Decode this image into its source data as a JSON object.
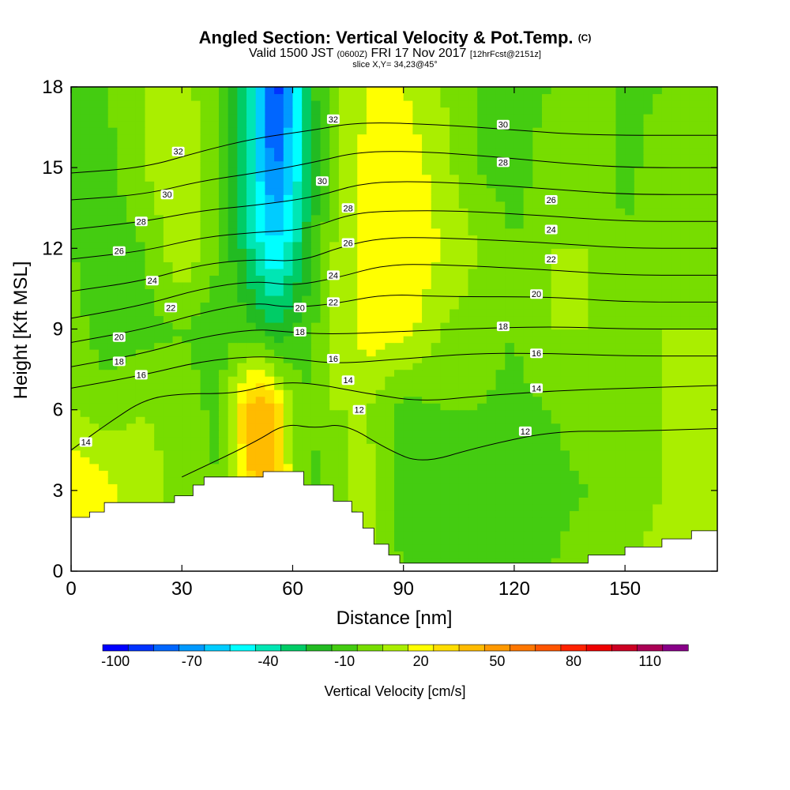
{
  "header": {
    "title": "Angled Section: Vertical Velocity & Pot.Temp.",
    "title_suffix": "(C)",
    "valid_prefix": "Valid 1500 JST",
    "valid_zulu": "(0600Z)",
    "valid_date": "FRI 17 Nov 2017",
    "valid_fcst": "[12hrFcst@2151z]",
    "slice": "slice X,Y= 34,23@45°"
  },
  "chart_data": {
    "type": "heatmap",
    "title": "Angled Section: Vertical Velocity & Pot.Temp. (C)",
    "xlabel": "Distance [nm]",
    "ylabel": "Height [Kft MSL]",
    "xlim": [
      0,
      175
    ],
    "ylim": [
      0,
      18
    ],
    "x_ticks": [
      0,
      30,
      60,
      90,
      120,
      150
    ],
    "y_ticks": [
      0,
      3,
      6,
      9,
      12,
      15,
      18
    ],
    "grid": false,
    "colorbar": {
      "title": "Vertical Velocity [cm/s]",
      "tick_labels": [
        "-100",
        "-70",
        "-40",
        "-10",
        "20",
        "50",
        "80",
        "110"
      ],
      "tick_values": [
        -100,
        -70,
        -40,
        -10,
        20,
        50,
        80,
        110
      ],
      "min": -105,
      "max": 125,
      "step": 10,
      "colors": [
        "#0000ff",
        "#0033ff",
        "#0066ff",
        "#0099ff",
        "#00ccff",
        "#00ffff",
        "#00e6b4",
        "#00cc66",
        "#22bb22",
        "#44cc11",
        "#77dd00",
        "#aaee00",
        "#ffff00",
        "#ffdd00",
        "#ffbb00",
        "#ff9900",
        "#ff7700",
        "#ff5500",
        "#ff2200",
        "#ee0000",
        "#cc0022",
        "#aa0055",
        "#880088"
      ]
    },
    "velocity_field": {
      "x": [
        0,
        10,
        20,
        30,
        40,
        45,
        50,
        55,
        60,
        65,
        70,
        75,
        80,
        90,
        100,
        110,
        120,
        130,
        140,
        150,
        160,
        175
      ],
      "y": [
        0,
        3,
        6,
        9,
        12,
        15,
        18
      ],
      "values": [
        [
          12,
          10,
          5,
          -5,
          -8,
          5,
          10,
          5,
          -5,
          -10,
          -5,
          0,
          5,
          -5,
          -8,
          -5,
          -8,
          -5,
          0,
          5,
          8,
          10
        ],
        [
          25,
          18,
          10,
          2,
          -5,
          15,
          40,
          35,
          10,
          -8,
          -5,
          5,
          10,
          -12,
          -10,
          -8,
          -12,
          -8,
          -5,
          0,
          5,
          8
        ],
        [
          5,
          0,
          5,
          0,
          -8,
          22,
          45,
          35,
          5,
          -5,
          5,
          5,
          5,
          -10,
          -5,
          -5,
          -8,
          -5,
          0,
          5,
          5,
          5
        ],
        [
          0,
          -12,
          -8,
          -5,
          -10,
          -8,
          -15,
          -25,
          -15,
          -8,
          5,
          12,
          20,
          20,
          5,
          0,
          -5,
          5,
          5,
          0,
          5,
          5
        ],
        [
          -5,
          -12,
          -5,
          15,
          -5,
          -20,
          -40,
          -55,
          -40,
          -15,
          5,
          10,
          20,
          25,
          15,
          5,
          -5,
          5,
          5,
          -5,
          5,
          0
        ],
        [
          -5,
          -8,
          5,
          15,
          -5,
          -25,
          -50,
          -80,
          -55,
          -25,
          -10,
          10,
          18,
          22,
          10,
          -5,
          -10,
          0,
          5,
          -8,
          0,
          -5
        ],
        [
          -5,
          -5,
          5,
          10,
          -5,
          -22,
          -45,
          -95,
          -60,
          -15,
          -10,
          10,
          15,
          15,
          5,
          -5,
          -8,
          -5,
          0,
          -8,
          -5,
          0
        ]
      ]
    },
    "terrain_kft": [
      [
        0,
        2.0
      ],
      [
        5,
        2.2
      ],
      [
        9,
        2.55
      ],
      [
        20,
        2.55
      ],
      [
        28,
        2.8
      ],
      [
        33,
        3.2
      ],
      [
        36,
        3.5
      ],
      [
        48,
        3.5
      ],
      [
        52,
        3.7
      ],
      [
        58,
        3.7
      ],
      [
        63,
        3.2
      ],
      [
        68,
        3.2
      ],
      [
        71,
        2.6
      ],
      [
        76,
        2.2
      ],
      [
        79,
        1.6
      ],
      [
        82,
        1.0
      ],
      [
        86,
        0.6
      ],
      [
        89,
        0.3
      ],
      [
        130,
        0.3
      ],
      [
        140,
        0.6
      ],
      [
        150,
        0.9
      ],
      [
        160,
        1.2
      ],
      [
        168,
        1.5
      ],
      [
        175,
        1.6
      ]
    ],
    "theta_contours": [
      {
        "label": "12",
        "pts": [
          [
            30,
            3.5
          ],
          [
            50,
            4.8
          ],
          [
            58,
            5.5
          ],
          [
            66,
            5.3
          ],
          [
            74,
            5.5
          ],
          [
            86,
            4.5
          ],
          [
            95,
            4.0
          ],
          [
            110,
            4.6
          ],
          [
            130,
            5.2
          ],
          [
            150,
            5.2
          ],
          [
            175,
            5.3
          ]
        ]
      },
      {
        "label": "14",
        "pts": [
          [
            0,
            4.5
          ],
          [
            10,
            5.5
          ],
          [
            20,
            6.4
          ],
          [
            30,
            6.6
          ],
          [
            45,
            6.6
          ],
          [
            55,
            7.0
          ],
          [
            65,
            7.0
          ],
          [
            80,
            6.6
          ],
          [
            95,
            6.3
          ],
          [
            110,
            6.5
          ],
          [
            130,
            6.7
          ],
          [
            150,
            6.8
          ],
          [
            175,
            6.9
          ]
        ]
      },
      {
        "label": "16",
        "pts": [
          [
            0,
            6.8
          ],
          [
            20,
            7.3
          ],
          [
            35,
            7.8
          ],
          [
            50,
            8.0
          ],
          [
            60,
            7.9
          ],
          [
            72,
            7.7
          ],
          [
            90,
            7.9
          ],
          [
            110,
            8.1
          ],
          [
            130,
            8.1
          ],
          [
            150,
            8.0
          ],
          [
            175,
            8.0
          ]
        ]
      },
      {
        "label": "18",
        "pts": [
          [
            0,
            7.6
          ],
          [
            20,
            8.1
          ],
          [
            35,
            8.7
          ],
          [
            50,
            9.0
          ],
          [
            58,
            8.9
          ],
          [
            70,
            8.8
          ],
          [
            88,
            8.9
          ],
          [
            105,
            9.0
          ],
          [
            130,
            9.1
          ],
          [
            150,
            9.0
          ],
          [
            175,
            9.0
          ]
        ]
      },
      {
        "label": "20",
        "pts": [
          [
            0,
            8.5
          ],
          [
            20,
            9.0
          ],
          [
            35,
            9.6
          ],
          [
            50,
            10.0
          ],
          [
            58,
            9.8
          ],
          [
            70,
            9.9
          ],
          [
            85,
            10.3
          ],
          [
            100,
            10.2
          ],
          [
            130,
            10.2
          ],
          [
            150,
            10.0
          ],
          [
            175,
            10.0
          ]
        ]
      },
      {
        "label": "22",
        "pts": [
          [
            0,
            9.4
          ],
          [
            20,
            9.9
          ],
          [
            35,
            10.5
          ],
          [
            50,
            10.8
          ],
          [
            60,
            10.6
          ],
          [
            72,
            10.9
          ],
          [
            85,
            11.4
          ],
          [
            100,
            11.4
          ],
          [
            130,
            11.2
          ],
          [
            150,
            11.0
          ],
          [
            175,
            11.0
          ]
        ]
      },
      {
        "label": "24",
        "pts": [
          [
            0,
            10.4
          ],
          [
            20,
            10.8
          ],
          [
            35,
            11.4
          ],
          [
            50,
            11.6
          ],
          [
            62,
            11.5
          ],
          [
            74,
            12.1
          ],
          [
            85,
            12.4
          ],
          [
            100,
            12.4
          ],
          [
            130,
            12.2
          ],
          [
            150,
            12.0
          ],
          [
            175,
            12.0
          ]
        ]
      },
      {
        "label": "26",
        "pts": [
          [
            0,
            11.6
          ],
          [
            20,
            11.9
          ],
          [
            35,
            12.4
          ],
          [
            50,
            12.6
          ],
          [
            64,
            12.7
          ],
          [
            76,
            13.3
          ],
          [
            88,
            13.4
          ],
          [
            105,
            13.4
          ],
          [
            130,
            13.2
          ],
          [
            150,
            13.0
          ],
          [
            175,
            13.0
          ]
        ]
      },
      {
        "label": "28",
        "pts": [
          [
            0,
            12.7
          ],
          [
            20,
            13.0
          ],
          [
            35,
            13.4
          ],
          [
            50,
            13.6
          ],
          [
            66,
            13.9
          ],
          [
            78,
            14.4
          ],
          [
            90,
            14.5
          ],
          [
            110,
            14.4
          ],
          [
            130,
            14.2
          ],
          [
            150,
            14.0
          ],
          [
            175,
            14.0
          ]
        ]
      },
      {
        "label": "30",
        "pts": [
          [
            0,
            13.8
          ],
          [
            20,
            14.0
          ],
          [
            35,
            14.5
          ],
          [
            50,
            14.8
          ],
          [
            66,
            15.2
          ],
          [
            78,
            15.6
          ],
          [
            95,
            15.6
          ],
          [
            115,
            15.4
          ],
          [
            130,
            15.2
          ],
          [
            150,
            15.0
          ],
          [
            175,
            15.0
          ]
        ]
      },
      {
        "label": "32",
        "pts": [
          [
            0,
            14.8
          ],
          [
            20,
            15.0
          ],
          [
            35,
            15.6
          ],
          [
            50,
            16.1
          ],
          [
            66,
            16.4
          ],
          [
            78,
            16.7
          ],
          [
            100,
            16.6
          ],
          [
            120,
            16.4
          ],
          [
            140,
            16.2
          ],
          [
            175,
            16.2
          ]
        ]
      }
    ],
    "contour_labels": [
      {
        "text": "32",
        "x": 29,
        "y": 15.6
      },
      {
        "text": "30",
        "x": 26,
        "y": 14.0
      },
      {
        "text": "28",
        "x": 19,
        "y": 13.0
      },
      {
        "text": "26",
        "x": 13,
        "y": 11.9
      },
      {
        "text": "24",
        "x": 22,
        "y": 10.8
      },
      {
        "text": "22",
        "x": 27,
        "y": 9.8
      },
      {
        "text": "20",
        "x": 13,
        "y": 8.7
      },
      {
        "text": "18",
        "x": 13,
        "y": 7.8
      },
      {
        "text": "16",
        "x": 19,
        "y": 7.3
      },
      {
        "text": "14",
        "x": 4,
        "y": 4.8
      },
      {
        "text": "32",
        "x": 71,
        "y": 16.8
      },
      {
        "text": "30",
        "x": 68,
        "y": 14.5
      },
      {
        "text": "28",
        "x": 75,
        "y": 13.5
      },
      {
        "text": "26",
        "x": 75,
        "y": 12.2
      },
      {
        "text": "24",
        "x": 71,
        "y": 11.0
      },
      {
        "text": "22",
        "x": 71,
        "y": 10.0
      },
      {
        "text": "20",
        "x": 62,
        "y": 9.8
      },
      {
        "text": "18",
        "x": 62,
        "y": 8.9
      },
      {
        "text": "16",
        "x": 71,
        "y": 7.9
      },
      {
        "text": "14",
        "x": 75,
        "y": 7.1
      },
      {
        "text": "12",
        "x": 78,
        "y": 6.0
      },
      {
        "text": "30",
        "x": 117,
        "y": 16.6
      },
      {
        "text": "28",
        "x": 117,
        "y": 15.2
      },
      {
        "text": "26",
        "x": 130,
        "y": 13.8
      },
      {
        "text": "24",
        "x": 130,
        "y": 12.7
      },
      {
        "text": "22",
        "x": 130,
        "y": 11.6
      },
      {
        "text": "20",
        "x": 126,
        "y": 10.3
      },
      {
        "text": "18",
        "x": 117,
        "y": 9.1
      },
      {
        "text": "16",
        "x": 126,
        "y": 8.1
      },
      {
        "text": "14",
        "x": 126,
        "y": 6.8
      },
      {
        "text": "12",
        "x": 123,
        "y": 5.2
      }
    ]
  }
}
